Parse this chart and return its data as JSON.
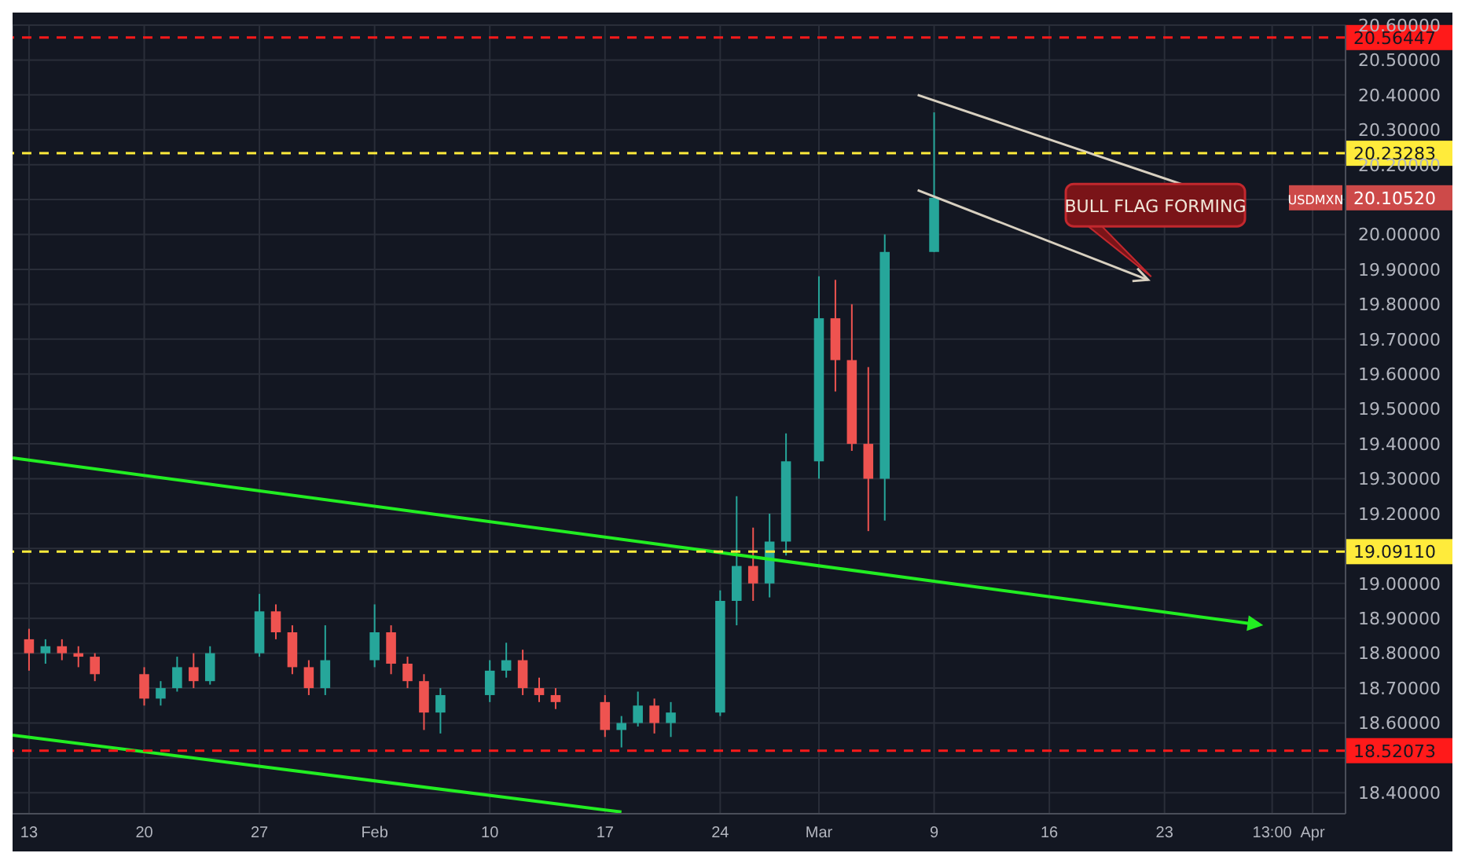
{
  "chart_data": {
    "type": "candlestick",
    "x": [
      "--01-13",
      "--01-14",
      "--01-15",
      "--01-16",
      "--01-17",
      "--01-20",
      "--01-21",
      "--01-22",
      "--01-23",
      "--01-24",
      "--01-27",
      "--01-28",
      "--01-29",
      "--01-30",
      "--01-31",
      "--02-03",
      "--02-04",
      "--02-05",
      "--02-06",
      "--02-07",
      "--02-10",
      "--02-11",
      "--02-12",
      "--02-13",
      "--02-14",
      "--02-17",
      "--02-18",
      "--02-19",
      "--02-20",
      "--02-21",
      "--02-24",
      "--02-25",
      "--02-26",
      "--02-27",
      "--02-28",
      "--03-02",
      "--03-03",
      "--03-04",
      "--03-05",
      "--03-06",
      "--03-09"
    ],
    "ohlc": [
      [
        18.84,
        18.87,
        18.75,
        18.8
      ],
      [
        18.8,
        18.84,
        18.77,
        18.82
      ],
      [
        18.82,
        18.84,
        18.78,
        18.8
      ],
      [
        18.8,
        18.82,
        18.76,
        18.79
      ],
      [
        18.79,
        18.8,
        18.72,
        18.74
      ],
      [
        18.74,
        18.76,
        18.65,
        18.67
      ],
      [
        18.67,
        18.72,
        18.65,
        18.7
      ],
      [
        18.7,
        18.79,
        18.69,
        18.76
      ],
      [
        18.76,
        18.8,
        18.7,
        18.72
      ],
      [
        18.72,
        18.82,
        18.71,
        18.8
      ],
      [
        18.8,
        18.97,
        18.79,
        18.92
      ],
      [
        18.92,
        18.94,
        18.84,
        18.86
      ],
      [
        18.86,
        18.88,
        18.74,
        18.76
      ],
      [
        18.76,
        18.78,
        18.68,
        18.7
      ],
      [
        18.7,
        18.88,
        18.68,
        18.78
      ],
      [
        18.78,
        18.94,
        18.76,
        18.86
      ],
      [
        18.86,
        18.88,
        18.74,
        18.77
      ],
      [
        18.77,
        18.79,
        18.7,
        18.72
      ],
      [
        18.72,
        18.74,
        18.58,
        18.63
      ],
      [
        18.63,
        18.7,
        18.57,
        18.68
      ],
      [
        18.68,
        18.78,
        18.66,
        18.75
      ],
      [
        18.75,
        18.83,
        18.73,
        18.78
      ],
      [
        18.78,
        18.81,
        18.68,
        18.7
      ],
      [
        18.7,
        18.73,
        18.66,
        18.68
      ],
      [
        18.68,
        18.7,
        18.64,
        18.66
      ],
      [
        18.66,
        18.68,
        18.56,
        18.58
      ],
      [
        18.58,
        18.62,
        18.53,
        18.6
      ],
      [
        18.6,
        18.69,
        18.59,
        18.65
      ],
      [
        18.65,
        18.67,
        18.57,
        18.6
      ],
      [
        18.6,
        18.66,
        18.56,
        18.63
      ],
      [
        18.63,
        18.98,
        18.62,
        18.95
      ],
      [
        18.95,
        19.25,
        18.88,
        19.05
      ],
      [
        19.05,
        19.16,
        18.95,
        19.0
      ],
      [
        19.0,
        19.2,
        18.96,
        19.12
      ],
      [
        19.12,
        19.43,
        19.08,
        19.35
      ],
      [
        19.35,
        19.88,
        19.3,
        19.76
      ],
      [
        19.76,
        19.87,
        19.55,
        19.64
      ],
      [
        19.64,
        19.8,
        19.38,
        19.4
      ],
      [
        19.4,
        19.62,
        19.15,
        19.3
      ],
      [
        19.3,
        20.0,
        19.18,
        19.95
      ],
      [
        19.95,
        20.35,
        19.95,
        20.1052
      ]
    ],
    "colors": [
      "#ef5350",
      "#26a69a",
      "#ef5350",
      "#ef5350",
      "#ef5350",
      "#ef5350",
      "#26a69a",
      "#26a69a",
      "#ef5350",
      "#26a69a",
      "#26a69a",
      "#ef5350",
      "#ef5350",
      "#ef5350",
      "#26a69a",
      "#26a69a",
      "#ef5350",
      "#ef5350",
      "#ef5350",
      "#26a69a",
      "#26a69a",
      "#26a69a",
      "#ef5350",
      "#ef5350",
      "#ef5350",
      "#ef5350",
      "#26a69a",
      "#26a69a",
      "#ef5350",
      "#26a69a",
      "#26a69a",
      "#26a69a",
      "#ef5350",
      "#26a69a",
      "#26a69a",
      "#26a69a",
      "#ef5350",
      "#ef5350",
      "#ef5350",
      "#26a69a",
      "#26a69a"
    ],
    "series": [
      {
        "type": "line",
        "color": "#22ee22",
        "x": [
          "--01-12",
          "--02-18"
        ],
        "values": [
          18.565,
          18.345
        ]
      }
    ],
    "xlim": [
      "--01-12",
      "--04-03"
    ],
    "xticks": [
      {
        "value": "--01-13",
        "label": "13"
      },
      {
        "value": "--01-20",
        "label": "20"
      },
      {
        "value": "--01-27",
        "label": "27"
      },
      {
        "value": "--02-03",
        "label": "Feb"
      },
      {
        "value": "--02-10",
        "label": "10"
      },
      {
        "value": "--02-17",
        "label": "17"
      },
      {
        "value": "--02-24",
        "label": "24"
      },
      {
        "value": "--03-02",
        "label": "Mar"
      },
      {
        "value": "--03-09",
        "label": "9"
      },
      {
        "value": "--03-16",
        "label": "16"
      },
      {
        "value": "--03-23",
        "label": "23"
      },
      {
        "value": "--03-29T13:00",
        "label": "13:00"
      },
      {
        "value": "--04-01",
        "label": "Apr"
      }
    ],
    "ylim": [
      18.34,
      20.6
    ],
    "yticks": [
      {
        "value": 18.4,
        "label": "18.40000"
      },
      {
        "value": 18.5,
        "label": null
      },
      {
        "value": 18.6,
        "label": "18.60000"
      },
      {
        "value": 18.7,
        "label": "18.70000"
      },
      {
        "value": 18.8,
        "label": "18.80000"
      },
      {
        "value": 18.9,
        "label": "18.90000"
      },
      {
        "value": 19.0,
        "label": "19.00000"
      },
      {
        "value": 19.1,
        "label": null
      },
      {
        "value": 19.2,
        "label": "19.20000"
      },
      {
        "value": 19.3,
        "label": "19.30000"
      },
      {
        "value": 19.4,
        "label": "19.40000"
      },
      {
        "value": 19.5,
        "label": "19.50000"
      },
      {
        "value": 19.6,
        "label": "19.60000"
      },
      {
        "value": 19.7,
        "label": "19.70000"
      },
      {
        "value": 19.8,
        "label": "19.80000"
      },
      {
        "value": 19.9,
        "label": "19.90000"
      },
      {
        "value": 20.0,
        "label": "20.00000"
      },
      {
        "value": 20.1,
        "label": null
      },
      {
        "value": 20.2,
        "label": "20.20000"
      },
      {
        "value": 20.3,
        "label": "20.30000"
      },
      {
        "value": 20.4,
        "label": "20.40000"
      },
      {
        "value": 20.5,
        "label": "20.50000"
      },
      {
        "value": 20.6,
        "label": "20.60000"
      }
    ],
    "ref_lines": [
      {
        "axis": "y",
        "value": 20.56447,
        "label": "20.56447",
        "color": "#ff1a1a",
        "line_style": "dashed"
      },
      {
        "axis": "y",
        "value": 20.23283,
        "label": "20.23283",
        "color": "#ffeb3b",
        "line_style": "dashed"
      },
      {
        "axis": "y",
        "value": 19.0911,
        "label": "19.09110",
        "color": "#ffeb3b",
        "line_style": "dashed"
      },
      {
        "axis": "y",
        "value": 18.52073,
        "label": "18.52073",
        "color": "#ff1a1a",
        "line_style": "dashed"
      }
    ],
    "annotations": [
      {
        "text": "BULL FLAG FORMING"
      },
      "USDMXN",
      "20.10520"
    ],
    "grid": true
  }
}
